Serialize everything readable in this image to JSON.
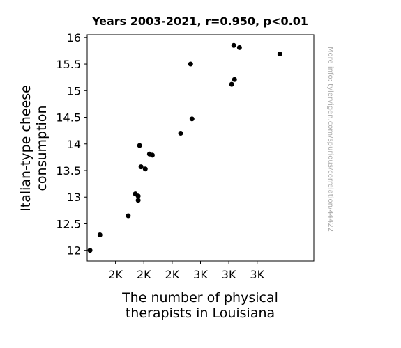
{
  "chart_data": {
    "type": "scatter",
    "title": "Years 2003-2021, r=0.950, p<0.01",
    "xlabel": [
      "The number of physical",
      "therapists in Louisiana"
    ],
    "ylabel": [
      "Italian-type cheese",
      "consumption"
    ],
    "side_note": "More info: tylervigen.com/spurious/correlation/44422",
    "xlim": [
      1700,
      3300
    ],
    "ylim": [
      11.8,
      16.05
    ],
    "x_ticks": [
      {
        "value": 1900,
        "label": "2K"
      },
      {
        "value": 2100,
        "label": "2K"
      },
      {
        "value": 2300,
        "label": "2K"
      },
      {
        "value": 2500,
        "label": "3K"
      },
      {
        "value": 2700,
        "label": "3K"
      },
      {
        "value": 2900,
        "label": "3K"
      }
    ],
    "y_ticks": [
      {
        "value": 12,
        "label": "12"
      },
      {
        "value": 12.5,
        "label": "12.5"
      },
      {
        "value": 13,
        "label": "13"
      },
      {
        "value": 13.5,
        "label": "13.5"
      },
      {
        "value": 14,
        "label": "14"
      },
      {
        "value": 14.5,
        "label": "14.5"
      },
      {
        "value": 15,
        "label": "15"
      },
      {
        "value": 15.5,
        "label": "15.5"
      },
      {
        "value": 16,
        "label": "16"
      }
    ],
    "points": [
      {
        "x": 1720,
        "y": 12.0
      },
      {
        "x": 1790,
        "y": 12.29
      },
      {
        "x": 1990,
        "y": 12.65
      },
      {
        "x": 2040,
        "y": 13.06
      },
      {
        "x": 2060,
        "y": 13.02
      },
      {
        "x": 2060,
        "y": 12.94
      },
      {
        "x": 2070,
        "y": 13.97
      },
      {
        "x": 2080,
        "y": 13.57
      },
      {
        "x": 2110,
        "y": 13.53
      },
      {
        "x": 2140,
        "y": 13.81
      },
      {
        "x": 2160,
        "y": 13.79
      },
      {
        "x": 2360,
        "y": 14.2
      },
      {
        "x": 2430,
        "y": 15.5
      },
      {
        "x": 2440,
        "y": 14.47
      },
      {
        "x": 2720,
        "y": 15.12
      },
      {
        "x": 2735,
        "y": 15.85
      },
      {
        "x": 2740,
        "y": 15.21
      },
      {
        "x": 2775,
        "y": 15.81
      },
      {
        "x": 3060,
        "y": 15.69
      }
    ],
    "point_color": "#000000",
    "grid": false,
    "legend": "none"
  }
}
